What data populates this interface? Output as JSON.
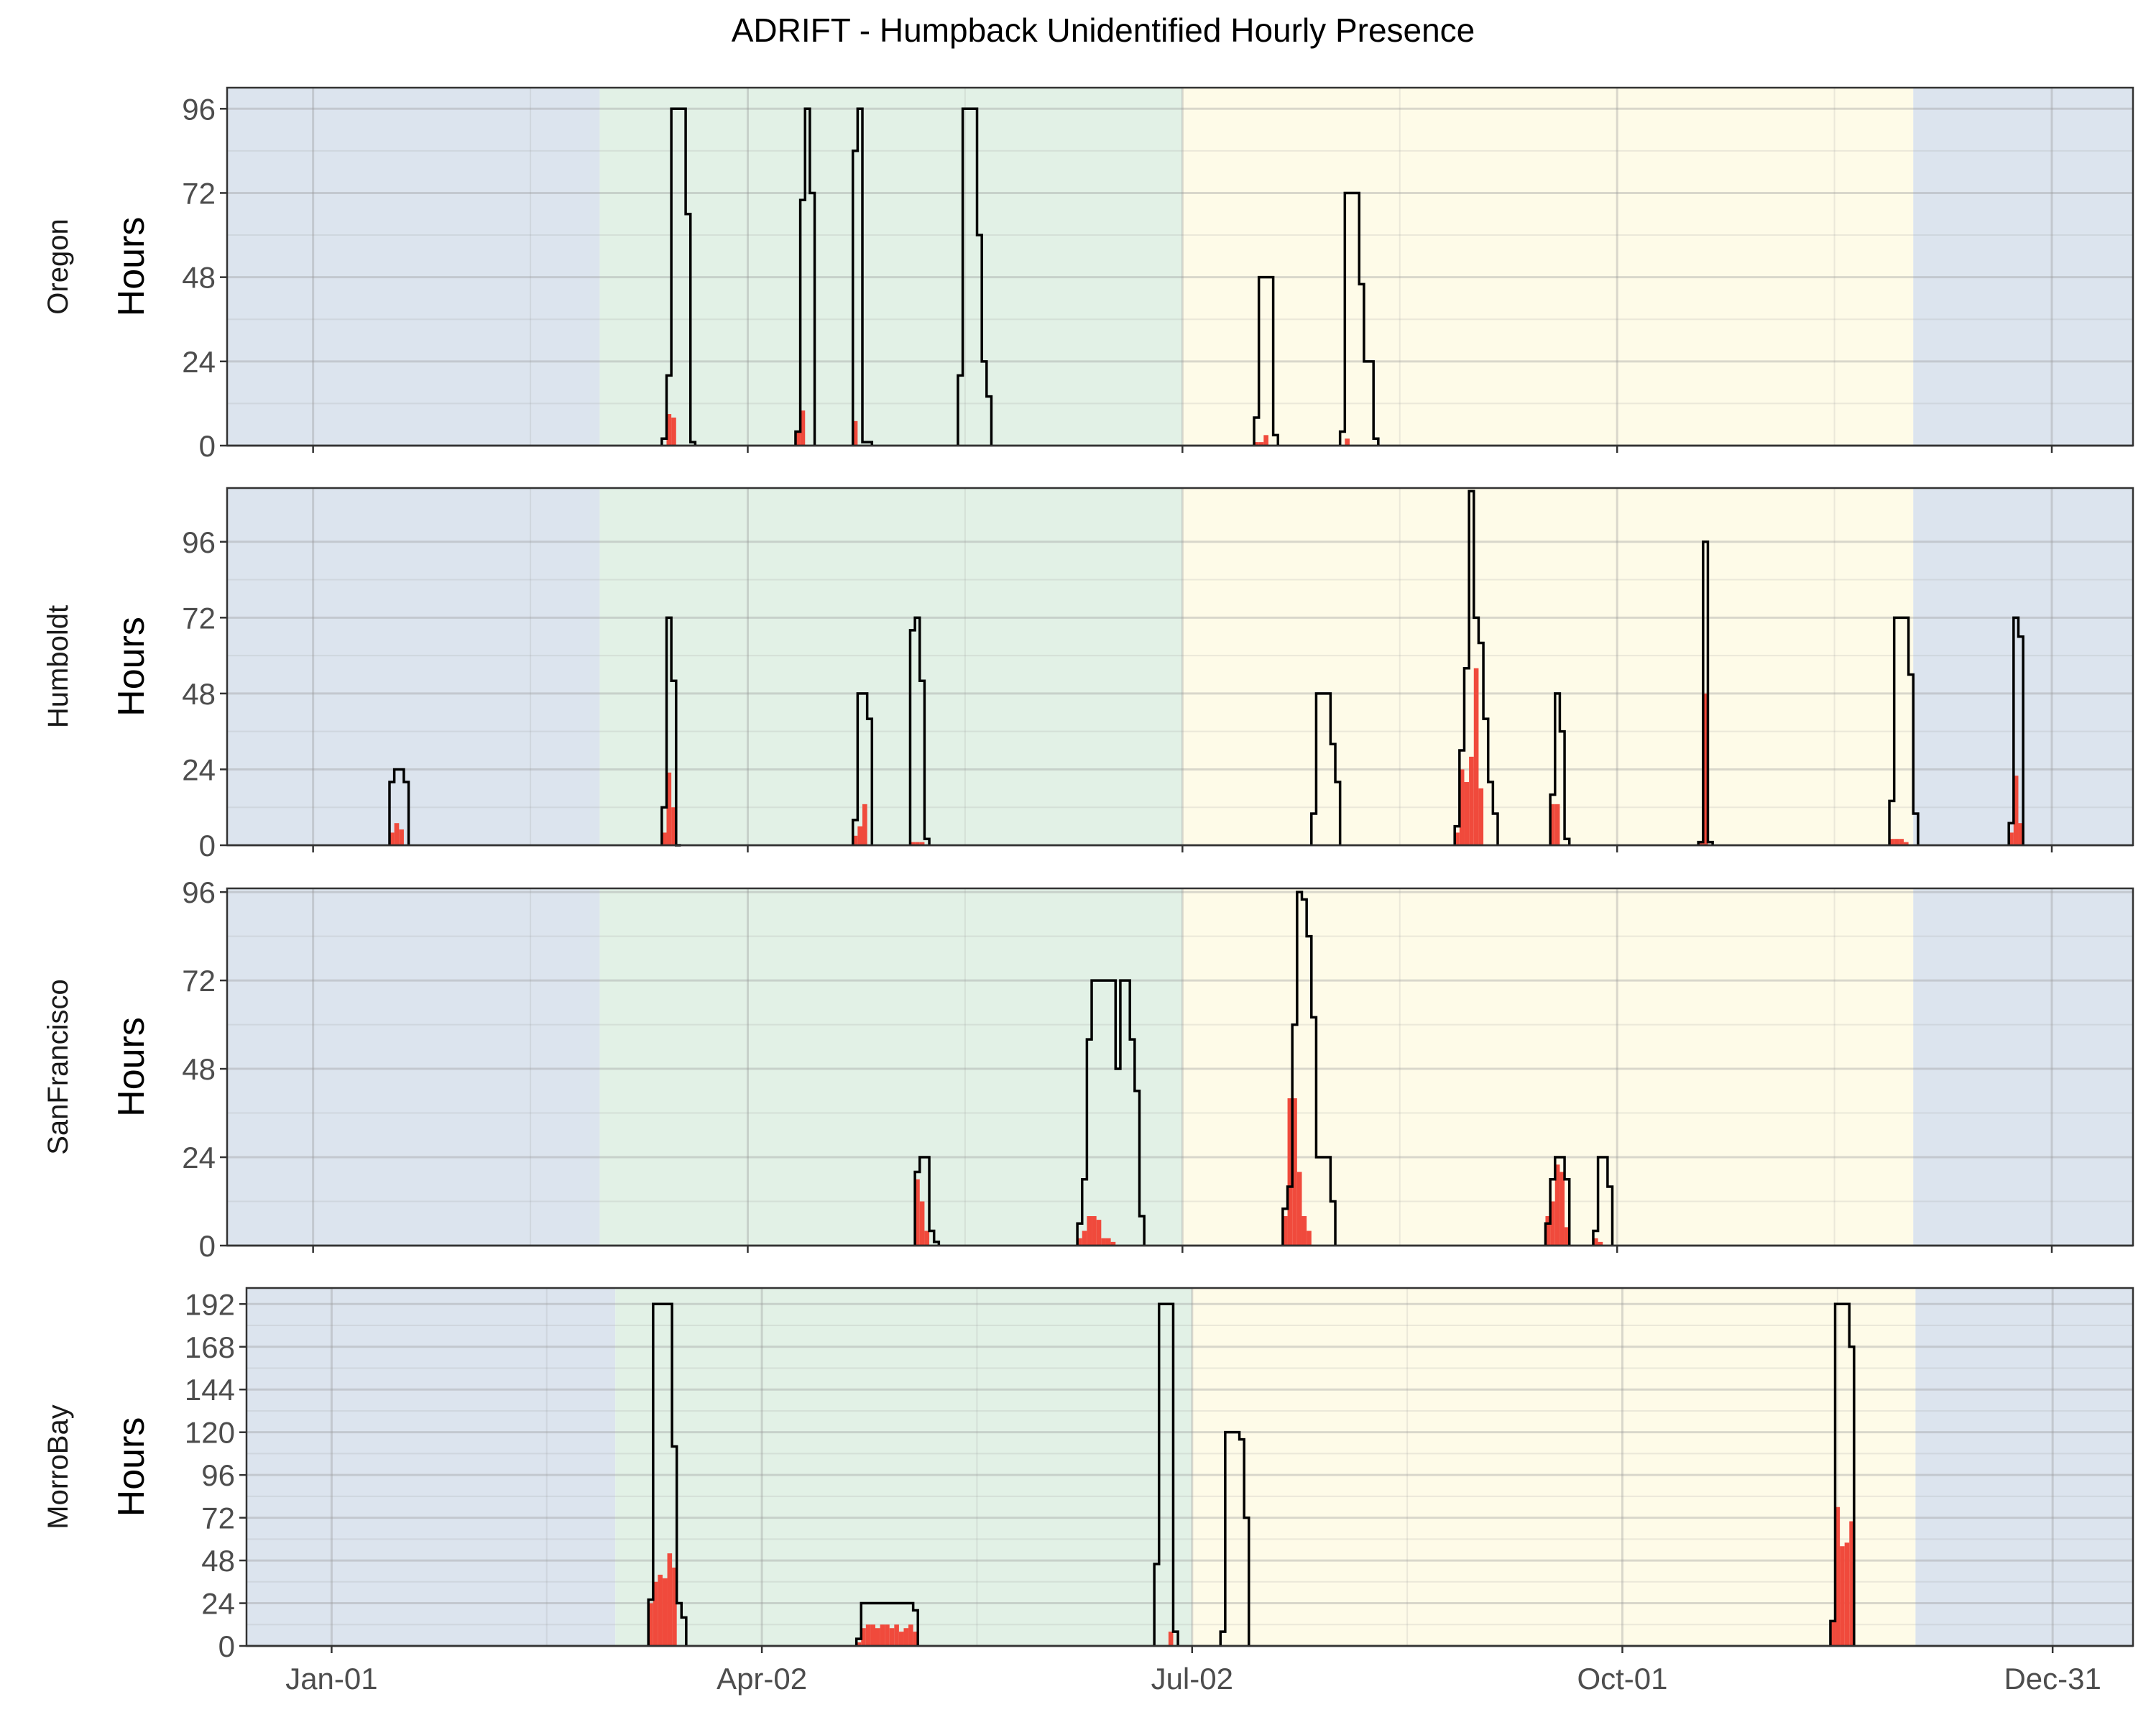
{
  "chart_data": {
    "type": "step-line-bar",
    "title": "ADRIFT - Humpback Unidentified Hourly Presence",
    "ylabel": "Hours",
    "x_ticks": [
      {
        "day": 1,
        "label": "Jan-01"
      },
      {
        "day": 92,
        "label": "Apr-02"
      },
      {
        "day": 183,
        "label": "Jul-02"
      },
      {
        "day": 274,
        "label": "Oct-01"
      },
      {
        "day": 365,
        "label": "Dec-31"
      }
    ],
    "season_colors": {
      "winter": "#dce4ee",
      "spring": "#e2f1e6",
      "summer": "#fefbe8"
    },
    "line_color": "#000000",
    "bar_color": "#f04a3c",
    "panels": [
      {
        "name": "Oregon",
        "xlim": [
          -17,
          382
        ],
        "ylim": [
          0,
          102
        ],
        "y_ticks": [
          0,
          24,
          48,
          72,
          96
        ],
        "seasons": [
          {
            "season": "winter",
            "start": -17,
            "end": 61
          },
          {
            "season": "spring",
            "start": 61,
            "end": 183
          },
          {
            "season": "summer",
            "start": 183,
            "end": 336
          },
          {
            "season": "winter",
            "start": 336,
            "end": 382
          }
        ],
        "events": [
          {
            "start": 74,
            "steps": [
              2,
              20,
              96,
              96,
              96,
              66,
              1
            ],
            "bars": [
              0,
              9,
              8,
              0,
              0,
              0,
              0
            ]
          },
          {
            "start": 102,
            "steps": [
              4,
              70,
              96,
              72
            ],
            "bars": [
              4,
              10,
              0,
              0
            ]
          },
          {
            "start": 114,
            "steps": [
              84,
              96,
              1,
              1
            ],
            "bars": [
              7,
              0,
              0,
              0
            ]
          },
          {
            "start": 136,
            "steps": [
              20,
              96,
              96,
              96,
              60,
              24,
              14
            ],
            "bars": [
              0,
              0,
              0,
              0,
              0,
              0,
              0
            ]
          },
          {
            "start": 198,
            "steps": [
              8,
              48,
              48,
              48,
              3
            ],
            "bars": [
              1,
              1,
              3,
              0,
              0
            ]
          },
          {
            "start": 216,
            "steps": [
              4,
              72,
              72,
              72,
              46,
              24,
              24,
              2
            ],
            "bars": [
              0,
              2,
              0,
              0,
              0,
              0,
              0,
              0
            ]
          }
        ]
      },
      {
        "name": "Humboldt",
        "xlim": [
          -17,
          382
        ],
        "ylim": [
          0,
          113
        ],
        "y_ticks": [
          0,
          24,
          48,
          72,
          96
        ],
        "seasons": [
          {
            "season": "winter",
            "start": -17,
            "end": 61
          },
          {
            "season": "spring",
            "start": 61,
            "end": 183
          },
          {
            "season": "summer",
            "start": 183,
            "end": 336
          },
          {
            "season": "winter",
            "start": 336,
            "end": 382
          }
        ],
        "events": [
          {
            "start": 17,
            "steps": [
              20,
              24,
              24,
              20
            ],
            "bars": [
              4,
              7,
              5,
              0
            ]
          },
          {
            "start": 74,
            "steps": [
              12,
              72,
              52,
              0
            ],
            "bars": [
              4,
              23,
              12,
              0
            ]
          },
          {
            "start": 114,
            "steps": [
              8,
              48,
              48,
              40
            ],
            "bars": [
              3,
              6,
              13,
              0
            ]
          },
          {
            "start": 126,
            "steps": [
              68,
              72,
              52,
              2
            ],
            "bars": [
              1,
              1,
              1,
              0
            ]
          },
          {
            "start": 210,
            "steps": [
              10,
              48,
              48,
              48,
              32,
              20
            ],
            "bars": [
              0,
              0,
              0,
              0,
              0,
              0
            ]
          },
          {
            "start": 260,
            "steps": [
              16,
              48,
              36,
              2
            ],
            "bars": [
              13,
              13,
              0,
              0
            ]
          },
          {
            "start": 240,
            "steps": [
              6,
              30,
              56,
              112,
              72,
              64,
              40,
              20,
              10
            ],
            "bars": [
              4,
              24,
              20,
              28,
              56,
              18,
              0,
              0,
              0
            ]
          },
          {
            "start": 291,
            "steps": [
              1,
              96,
              1
            ],
            "bars": [
              1,
              48,
              0
            ]
          },
          {
            "start": 331,
            "steps": [
              14,
              72,
              72,
              72,
              54,
              10
            ],
            "bars": [
              2,
              2,
              2,
              1,
              0,
              0
            ]
          },
          {
            "start": 356,
            "steps": [
              7,
              72,
              66
            ],
            "bars": [
              4,
              22,
              7
            ]
          }
        ]
      },
      {
        "name": "SanFrancisco",
        "xlim": [
          -17,
          382
        ],
        "ylim": [
          0,
          97
        ],
        "y_ticks": [
          0,
          24,
          48,
          72,
          96
        ],
        "seasons": [
          {
            "season": "winter",
            "start": -17,
            "end": 61
          },
          {
            "season": "spring",
            "start": 61,
            "end": 183
          },
          {
            "season": "summer",
            "start": 183,
            "end": 336
          },
          {
            "season": "winter",
            "start": 336,
            "end": 382
          }
        ],
        "events": [
          {
            "start": 127,
            "steps": [
              20,
              24,
              24,
              4,
              1
            ],
            "bars": [
              18,
              12,
              4,
              0,
              0
            ]
          },
          {
            "start": 161,
            "steps": [
              6,
              18,
              56,
              72,
              72,
              72,
              72,
              72,
              48,
              72,
              72,
              56,
              42,
              8
            ],
            "bars": [
              2,
              4,
              8,
              8,
              7,
              2,
              2,
              1,
              0,
              0,
              0,
              0,
              0,
              0
            ]
          },
          {
            "start": 204,
            "steps": [
              10,
              16,
              60,
              96,
              94,
              84,
              62,
              24,
              24,
              24,
              12
            ],
            "bars": [
              8,
              40,
              40,
              20,
              8,
              4,
              0,
              0,
              0,
              0,
              0
            ]
          },
          {
            "start": 259,
            "steps": [
              6,
              18,
              24,
              24,
              18
            ],
            "bars": [
              8,
              12,
              22,
              20,
              5
            ]
          },
          {
            "start": 269,
            "steps": [
              4,
              24,
              24,
              16
            ],
            "bars": [
              2,
              1,
              0,
              0
            ]
          }
        ]
      },
      {
        "name": "MorroBay",
        "xlim": [
          -17,
          382
        ],
        "ylim": [
          0,
          201
        ],
        "y_ticks": [
          0,
          24,
          48,
          72,
          96,
          120,
          144,
          168,
          192
        ],
        "seasons": [
          {
            "season": "winter",
            "start": -17,
            "end": 61
          },
          {
            "season": "spring",
            "start": 61,
            "end": 183
          },
          {
            "season": "summer",
            "start": 183,
            "end": 336
          },
          {
            "season": "winter",
            "start": 336,
            "end": 382
          }
        ],
        "events": [
          {
            "start": 68,
            "steps": [
              26,
              192,
              192,
              192,
              192,
              112,
              24,
              16
            ],
            "bars": [
              24,
              36,
              40,
              38,
              52,
              44,
              0,
              0
            ]
          },
          {
            "start": 112,
            "steps": [
              4,
              24,
              24,
              24,
              24,
              24,
              24,
              24,
              24,
              24,
              24,
              24,
              20
            ],
            "bars": [
              2,
              10,
              12,
              12,
              10,
              12,
              12,
              10,
              12,
              8,
              10,
              12,
              8
            ]
          },
          {
            "start": 175,
            "steps": [
              46,
              192,
              192,
              192,
              8
            ],
            "bars": [
              0,
              0,
              0,
              8,
              0
            ]
          },
          {
            "start": 189,
            "steps": [
              8,
              120,
              120,
              120,
              116,
              72
            ],
            "bars": [
              0,
              0,
              0,
              0,
              0,
              0
            ]
          },
          {
            "start": 318,
            "steps": [
              14,
              192,
              192,
              192,
              168
            ],
            "bars": [
              14,
              78,
              56,
              58,
              70
            ]
          }
        ]
      }
    ]
  }
}
